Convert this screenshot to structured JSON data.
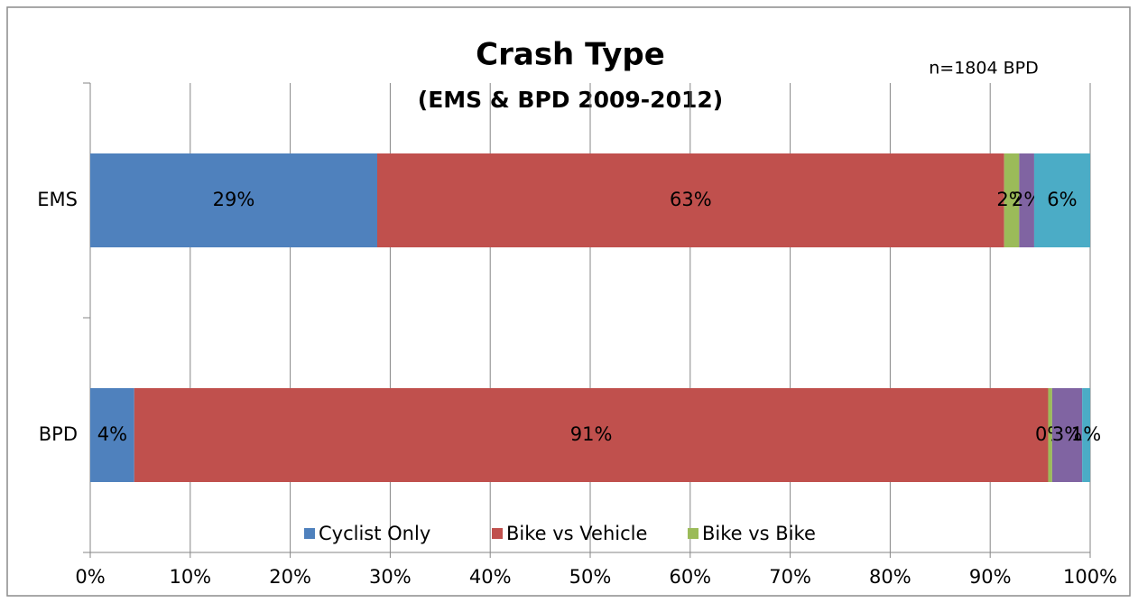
{
  "chart_data": {
    "type": "stacked-bar-horizontal",
    "title": "Crash Type",
    "subtitle": "(EMS & BPD 2009-2012)",
    "annotation": "n=1804 BPD",
    "categories": [
      "EMS",
      "BPD"
    ],
    "series": [
      {
        "name": "Cyclist Only",
        "color": "#4f81bd",
        "values": [
          28.7,
          4.4
        ],
        "value_labels": [
          "29%",
          "4%"
        ]
      },
      {
        "name": "Bike vs Vehicle",
        "color": "#c0504d",
        "values": [
          62.7,
          91.4
        ],
        "value_labels": [
          "63%",
          "91%"
        ]
      },
      {
        "name": "Bike vs Bike",
        "color": "#9bbb59",
        "values": [
          1.5,
          0.4
        ],
        "value_labels": [
          "2%",
          "0%"
        ]
      },
      {
        "color": "#8064a2",
        "values": [
          1.5,
          3.0
        ],
        "value_labels": [
          "2%",
          "3%"
        ]
      },
      {
        "color": "#4bacc6",
        "values": [
          5.6,
          0.8
        ],
        "value_labels": [
          "6%",
          "1%"
        ]
      }
    ],
    "xlim": [
      0,
      100
    ],
    "xticks": [
      {
        "value": 0,
        "label": "0%"
      },
      {
        "value": 10,
        "label": "10%"
      },
      {
        "value": 20,
        "label": "20%"
      },
      {
        "value": 30,
        "label": "30%"
      },
      {
        "value": 40,
        "label": "40%"
      },
      {
        "value": 50,
        "label": "50%"
      },
      {
        "value": 60,
        "label": "60%"
      },
      {
        "value": 70,
        "label": "70%"
      },
      {
        "value": 80,
        "label": "80%"
      },
      {
        "value": 90,
        "label": "90%"
      },
      {
        "value": 100,
        "label": "100%"
      }
    ],
    "grid": true,
    "legend": "bottom"
  }
}
